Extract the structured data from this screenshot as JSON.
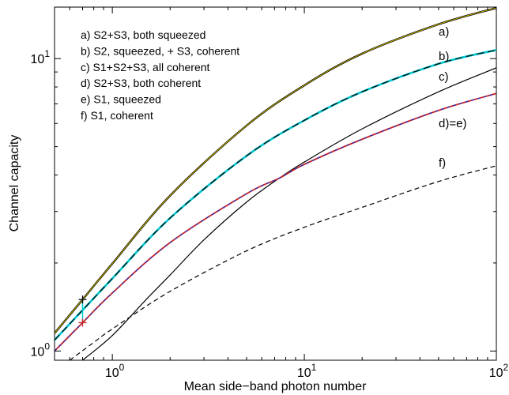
{
  "chart_data": {
    "type": "line",
    "xlabel": "Mean side−band photon number",
    "ylabel": "Channel capacity",
    "xscale": "log",
    "yscale": "log",
    "xlim": [
      0.5,
      100
    ],
    "ylim": [
      0.93,
      15
    ],
    "grid": false,
    "legend_placement": "top-left",
    "x_ticks": [
      {
        "value": 1,
        "base": "10",
        "exp": "0"
      },
      {
        "value": 10,
        "base": "10",
        "exp": "1"
      },
      {
        "value": 100,
        "base": "10",
        "exp": "2"
      }
    ],
    "y_ticks": [
      {
        "value": 1,
        "base": "10",
        "exp": "0"
      },
      {
        "value": 10,
        "base": "10",
        "exp": "1"
      }
    ],
    "legend": [
      "a) S2+S3, both squeezed",
      "b) S2, squeezed, + S3, coherent",
      "c) S1+S2+S3, all coherent",
      "d) S2+S3, both coherent",
      "e) S1, squeezed",
      "f)  S1, coherent"
    ],
    "series": [
      {
        "id": "a",
        "label": "a)",
        "color": "#000000",
        "color2": "#d8c800",
        "dash": "",
        "x": [
          0.5,
          0.7,
          1,
          2,
          5,
          10,
          20,
          50,
          100
        ],
        "y": [
          1.15,
          1.5,
          1.99,
          3.4,
          5.9,
          8.1,
          10.4,
          13.1,
          14.9
        ]
      },
      {
        "id": "b",
        "label": "b)",
        "color": "#000000",
        "color2": "#00c8d0",
        "dash": "9,5",
        "x": [
          0.5,
          0.7,
          1,
          2,
          5,
          10,
          20,
          50,
          100
        ],
        "y": [
          1.09,
          1.38,
          1.77,
          2.85,
          4.65,
          6.15,
          7.7,
          9.6,
          10.7
        ]
      },
      {
        "id": "c",
        "label": "c)",
        "color": "#000000",
        "color2": "",
        "dash": "",
        "x": [
          0.7,
          1,
          1.5,
          2,
          3,
          5,
          7.4,
          10,
          20,
          50,
          100
        ],
        "y": [
          0.93,
          1.13,
          1.5,
          1.82,
          2.4,
          3.23,
          3.9,
          4.43,
          5.75,
          7.7,
          9.3
        ]
      },
      {
        "id": "de",
        "label": "d)=e)",
        "color": "#d02020",
        "color2": "#2030c0",
        "dash": "4,4",
        "x": [
          0.5,
          0.7,
          1,
          2,
          5,
          7.4,
          10,
          20,
          50,
          100
        ],
        "y": [
          1.0,
          1.25,
          1.58,
          2.35,
          3.45,
          3.9,
          4.35,
          5.3,
          6.65,
          7.6
        ]
      },
      {
        "id": "f",
        "label": "f)",
        "color": "#000000",
        "color2": "",
        "dash": "6,4",
        "x": [
          0.6,
          0.8,
          1,
          2,
          5,
          10,
          20,
          50,
          100
        ],
        "y": [
          0.93,
          1.07,
          1.19,
          1.6,
          2.2,
          2.65,
          3.1,
          3.8,
          4.3
        ]
      }
    ],
    "markers": [
      {
        "x": 0.7,
        "y": 1.5,
        "shape": "+",
        "color": "#000000"
      },
      {
        "x": 0.7,
        "y": 1.25,
        "shape": "+",
        "color": "#d02020"
      }
    ],
    "connector": {
      "x": 0.7,
      "y_top": 1.5,
      "y_bottom": 1.25,
      "color": "#00c8d0"
    }
  }
}
